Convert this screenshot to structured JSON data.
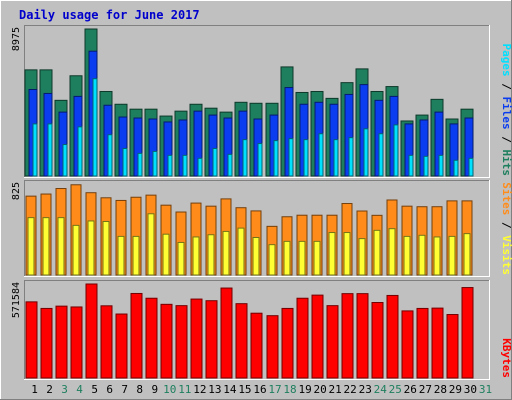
{
  "title": "Daily usage for June 2017",
  "colors": {
    "background": "#c0c0c0",
    "title": "#0000cc",
    "border_light": "#ffffff",
    "border_dark": "#808080",
    "hits": "#1e7f5e",
    "files": "#0a3cf0",
    "pages": "#00e0ff",
    "sites": "#ff8c1a",
    "visits": "#ffff33",
    "kbytes": "#ff0000",
    "weekend_day": "#1e7f5e",
    "weekday": "#000000"
  },
  "x_labels": [
    "1",
    "2",
    "3",
    "4",
    "5",
    "6",
    "7",
    "8",
    "9",
    "10",
    "11",
    "12",
    "13",
    "14",
    "15",
    "16",
    "17",
    "18",
    "19",
    "20",
    "21",
    "22",
    "23",
    "24",
    "25",
    "26",
    "27",
    "28",
    "29",
    "30",
    "31"
  ],
  "weekend_days": [
    "3",
    "4",
    "10",
    "11",
    "17",
    "18",
    "24",
    "25",
    "31"
  ],
  "panels": {
    "top": {
      "max_label": "8975",
      "legend": [
        {
          "text": "Hits",
          "color": "#1e7f5e"
        },
        {
          "text": " / ",
          "color": "#000000"
        },
        {
          "text": "Files",
          "color": "#0a3cf0"
        },
        {
          "text": " / ",
          "color": "#000000"
        },
        {
          "text": "Pages",
          "color": "#00e0ff"
        }
      ]
    },
    "middle": {
      "max_label": "825",
      "legend": [
        {
          "text": "Visits",
          "color": "#ffff33"
        },
        {
          "text": " / ",
          "color": "#000000"
        },
        {
          "text": "Sites",
          "color": "#ff8c1a"
        }
      ]
    },
    "bottom": {
      "max_label": "571584",
      "legend": [
        {
          "text": "KBytes",
          "color": "#ff0000"
        }
      ]
    }
  },
  "chart_data": [
    {
      "type": "bar",
      "panel": "top",
      "categories": [
        "1",
        "2",
        "3",
        "4",
        "5",
        "6",
        "7",
        "8",
        "9",
        "10",
        "11",
        "12",
        "13",
        "14",
        "15",
        "16",
        "17",
        "18",
        "19",
        "20",
        "21",
        "22",
        "23",
        "24",
        "25",
        "26",
        "27",
        "28",
        "29",
        "30",
        "31"
      ],
      "ylim": [
        0,
        8975
      ],
      "series": [
        {
          "name": "Hits",
          "color": "#1e7f5e",
          "values": [
            6480,
            6480,
            4620,
            6120,
            8975,
            5160,
            4380,
            4080,
            4080,
            3660,
            3960,
            4380,
            4140,
            3900,
            4500,
            4440,
            4440,
            6660,
            5100,
            5160,
            4740,
            5700,
            6540,
            5160,
            5460,
            3360,
            3720,
            4680,
            3480,
            4080,
            0
          ]
        },
        {
          "name": "Files",
          "color": "#0a3cf0",
          "values": [
            5280,
            5040,
            3900,
            4860,
            7620,
            4320,
            3600,
            3540,
            3480,
            3300,
            3420,
            3960,
            3720,
            3540,
            3960,
            3480,
            3720,
            5400,
            4380,
            4500,
            4380,
            4980,
            5580,
            4620,
            4860,
            3180,
            3420,
            3900,
            3180,
            3540,
            0
          ]
        },
        {
          "name": "Pages",
          "color": "#00e0ff",
          "values": [
            3180,
            3180,
            1920,
            3000,
            5940,
            2520,
            1680,
            1380,
            1500,
            1260,
            1260,
            1080,
            1680,
            1320,
            2220,
            1980,
            2160,
            2280,
            2220,
            2580,
            2220,
            2340,
            2880,
            2580,
            3120,
            1260,
            1200,
            1260,
            960,
            1080,
            0
          ]
        }
      ]
    },
    {
      "type": "bar",
      "panel": "middle",
      "categories": [
        "1",
        "2",
        "3",
        "4",
        "5",
        "6",
        "7",
        "8",
        "9",
        "10",
        "11",
        "12",
        "13",
        "14",
        "15",
        "16",
        "17",
        "18",
        "19",
        "20",
        "21",
        "22",
        "23",
        "24",
        "25",
        "26",
        "27",
        "28",
        "29",
        "30",
        "31"
      ],
      "ylim": [
        0,
        825
      ],
      "series": [
        {
          "name": "Sites",
          "color": "#ff8c1a",
          "values": [
            715,
            734,
            784,
            818,
            746,
            700,
            676,
            705,
            724,
            633,
            571,
            652,
            624,
            690,
            610,
            581,
            441,
            528,
            542,
            542,
            542,
            648,
            580,
            541,
            680,
            624,
            619,
            619,
            672,
            672,
            0
          ]
        },
        {
          "name": "Visits",
          "color": "#ffff33",
          "values": [
            520,
            520,
            520,
            450,
            490,
            485,
            350,
            350,
            555,
            370,
            295,
            345,
            365,
            395,
            425,
            340,
            275,
            305,
            305,
            305,
            385,
            385,
            330,
            405,
            420,
            350,
            360,
            345,
            350,
            375,
            0
          ]
        }
      ]
    },
    {
      "type": "bar",
      "panel": "bottom",
      "categories": [
        "1",
        "2",
        "3",
        "4",
        "5",
        "6",
        "7",
        "8",
        "9",
        "10",
        "11",
        "12",
        "13",
        "14",
        "15",
        "16",
        "17",
        "18",
        "19",
        "20",
        "21",
        "22",
        "23",
        "24",
        "25",
        "26",
        "27",
        "28",
        "29",
        "30",
        "31"
      ],
      "ylim": [
        0,
        571584
      ],
      "series": [
        {
          "name": "KBytes",
          "color": "#ff0000",
          "values": [
            463000,
            423000,
            437000,
            432000,
            571584,
            439000,
            389000,
            514000,
            485000,
            448000,
            440000,
            480000,
            470000,
            547000,
            452000,
            394000,
            379000,
            423000,
            485000,
            504000,
            440000,
            513000,
            513000,
            459000,
            502000,
            408000,
            423000,
            425000,
            386000,
            550000,
            0
          ]
        }
      ]
    }
  ]
}
